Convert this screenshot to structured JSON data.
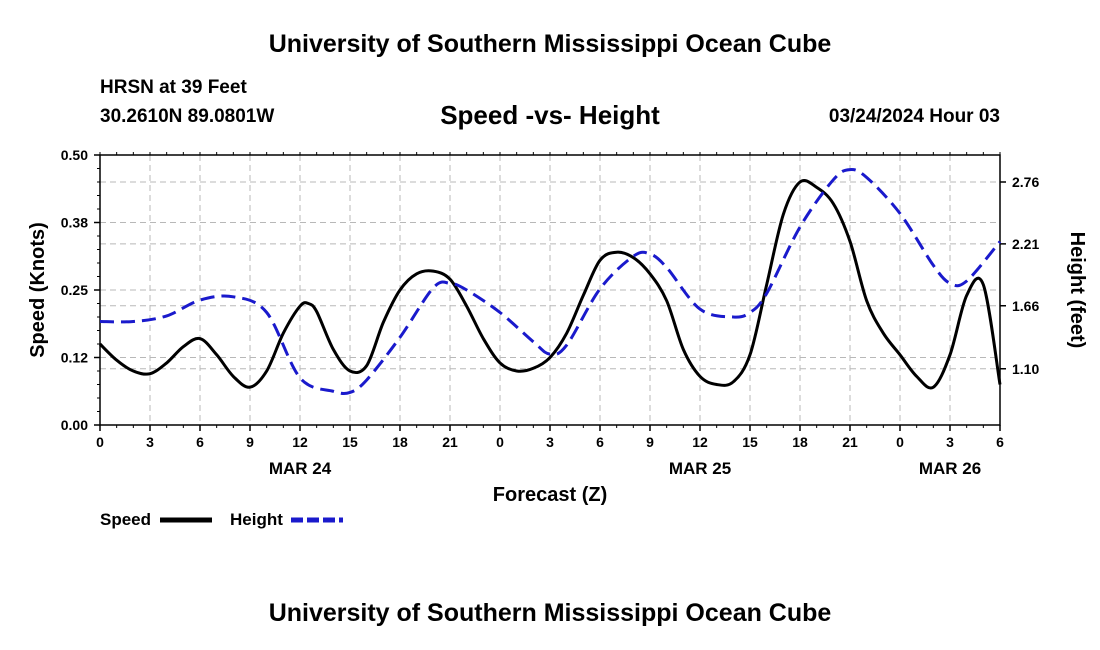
{
  "header": {
    "title": "University of Southern Mississippi Ocean Cube",
    "station": "HRSN at 39 Feet",
    "coordinates": "30.2610N  89.0801W",
    "subtitle": "Speed -vs- Height",
    "datetime": "03/24/2024 Hour 03"
  },
  "footer": {
    "title": "University of Southern Mississippi Ocean Cube"
  },
  "colors": {
    "speed": "#000000",
    "height": "#1a1acc",
    "grid": "#b8b8b8"
  },
  "chart_data": {
    "type": "line",
    "title": "Speed -vs- Height",
    "xlabel": "Forecast (Z)",
    "ylabel": "Speed (Knots)",
    "y2label": "Height (feet)",
    "x_hours_range": [
      0,
      54
    ],
    "x_tick_hours": [
      0,
      3,
      6,
      9,
      12,
      15,
      18,
      21,
      24,
      27,
      30,
      33,
      36,
      39,
      42,
      45,
      48,
      51,
      54
    ],
    "x_tick_labels": [
      "0",
      "3",
      "6",
      "9",
      "12",
      "15",
      "18",
      "21",
      "0",
      "3",
      "6",
      "9",
      "12",
      "15",
      "18",
      "21",
      "0",
      "3",
      "6"
    ],
    "date_labels": [
      {
        "hour": 12,
        "label": "MAR 24"
      },
      {
        "hour": 36,
        "label": "MAR 25"
      },
      {
        "hour": 51,
        "label": "MAR 26"
      }
    ],
    "ylim": [
      0,
      0.5
    ],
    "y_ticks": [
      0.0,
      0.125,
      0.25,
      0.375,
      0.5
    ],
    "y_tick_labels": [
      "0.00",
      "0.12",
      "0.25",
      "0.38",
      "0.50"
    ],
    "y2lim": [
      0.6,
      3.0
    ],
    "y2_ticks": [
      1.1,
      1.66,
      2.21,
      2.76
    ],
    "y2_tick_labels": [
      "1.10",
      "1.66",
      "2.21",
      "2.76"
    ],
    "legend_position": "bottom-left",
    "series": [
      {
        "name": "Speed",
        "axis": "left",
        "style": "solid",
        "x": [
          0,
          1,
          2,
          3,
          4,
          5,
          6,
          7,
          8,
          9,
          10,
          11,
          12,
          12.5,
          13,
          14,
          15,
          16,
          17,
          18,
          19,
          20,
          21,
          22,
          23,
          24,
          25,
          26,
          27,
          28,
          29,
          30,
          31,
          32,
          33,
          34,
          35,
          36,
          37,
          38,
          39,
          40,
          41,
          42,
          43,
          44,
          45,
          46,
          47,
          48,
          49,
          50,
          51,
          52,
          53,
          54
        ],
        "values": [
          0.15,
          0.12,
          0.1,
          0.095,
          0.115,
          0.145,
          0.16,
          0.13,
          0.09,
          0.07,
          0.1,
          0.17,
          0.22,
          0.225,
          0.21,
          0.14,
          0.1,
          0.11,
          0.19,
          0.25,
          0.28,
          0.285,
          0.27,
          0.22,
          0.16,
          0.115,
          0.1,
          0.105,
          0.125,
          0.17,
          0.24,
          0.305,
          0.32,
          0.31,
          0.28,
          0.23,
          0.14,
          0.09,
          0.075,
          0.08,
          0.13,
          0.26,
          0.39,
          0.45,
          0.44,
          0.41,
          0.34,
          0.23,
          0.17,
          0.13,
          0.09,
          0.07,
          0.13,
          0.24,
          0.26,
          0.075
        ],
        "name_note": ""
      },
      {
        "name": "Height",
        "axis": "right",
        "style": "dashed",
        "x": [
          0,
          2,
          4,
          6,
          8,
          10,
          12,
          14,
          15,
          16,
          18,
          20,
          21,
          22,
          24,
          26,
          27,
          28,
          30,
          32,
          33,
          34,
          36,
          38,
          39,
          40,
          42,
          44,
          45,
          46,
          48,
          50,
          51,
          52,
          54
        ],
        "values": [
          1.52,
          1.52,
          1.57,
          1.71,
          1.74,
          1.6,
          1.02,
          0.9,
          0.89,
          1.0,
          1.38,
          1.82,
          1.86,
          1.8,
          1.6,
          1.34,
          1.23,
          1.31,
          1.81,
          2.1,
          2.12,
          2.0,
          1.63,
          1.56,
          1.6,
          1.77,
          2.36,
          2.78,
          2.87,
          2.8,
          2.48,
          2.02,
          1.86,
          1.88,
          2.23
        ]
      }
    ],
    "legend": [
      {
        "label": "Speed",
        "style": "solid"
      },
      {
        "label": "Height",
        "style": "dashed"
      }
    ]
  }
}
